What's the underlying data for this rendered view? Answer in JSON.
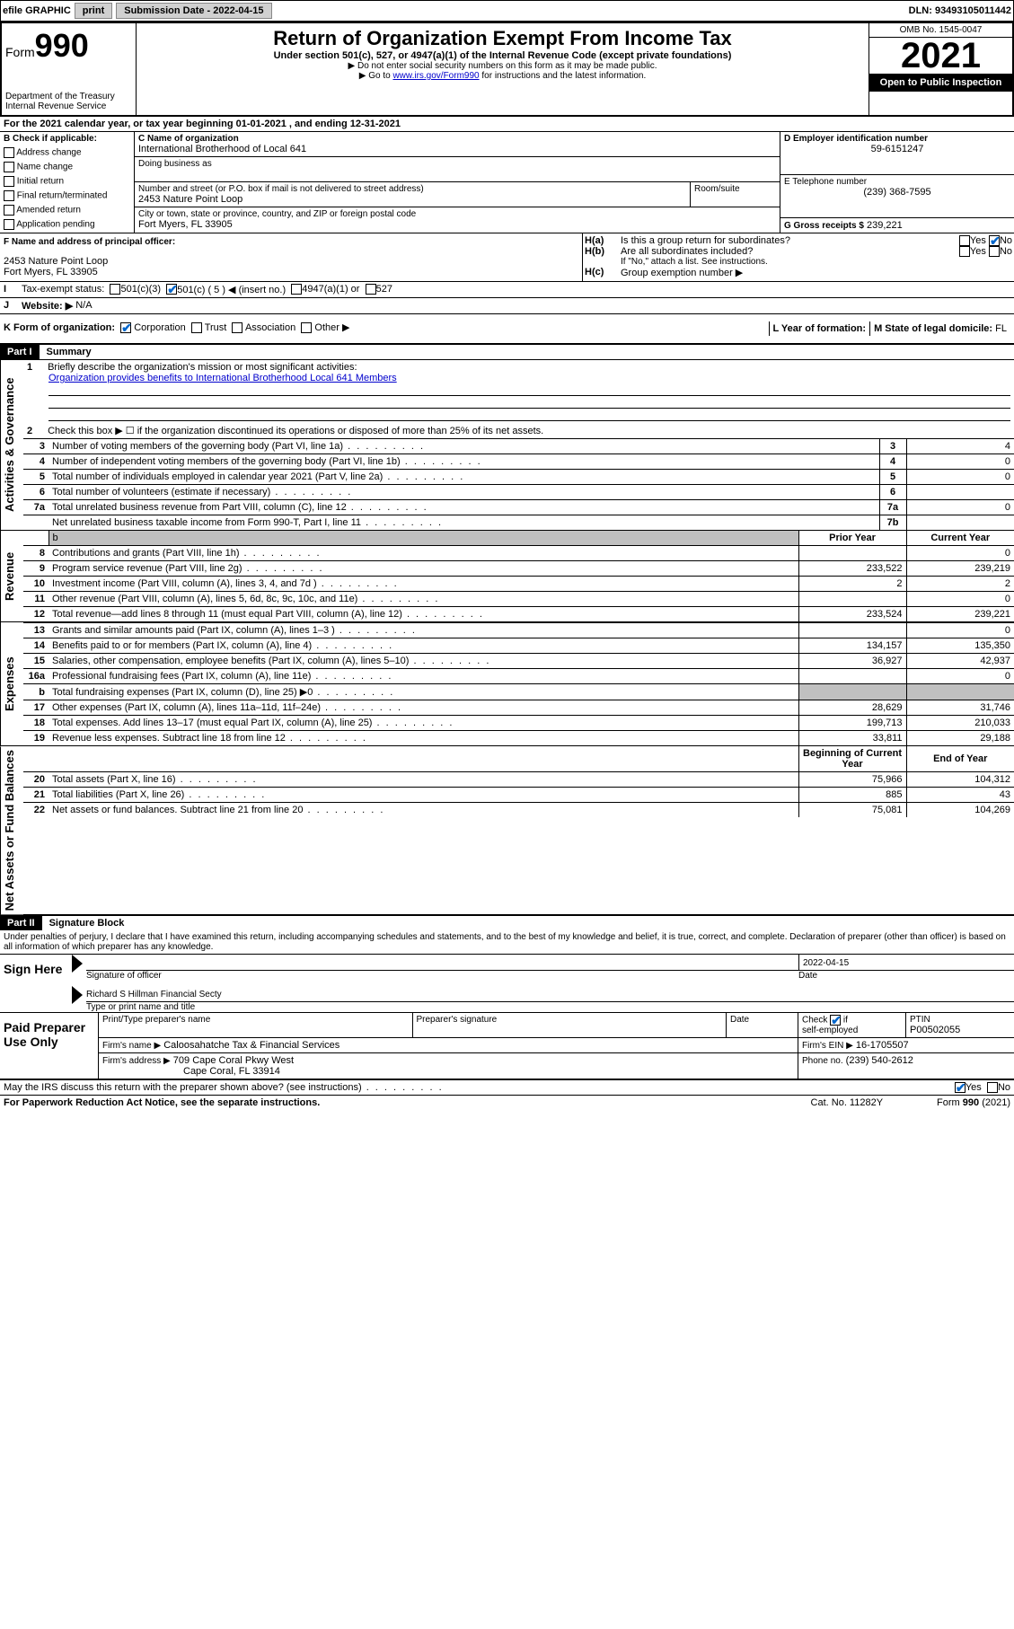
{
  "topbar": {
    "efile_label": "efile GRAPHIC",
    "print_btn": "print",
    "sub_date_label": "Submission Date - 2022-04-15",
    "dln": "DLN: 93493105011442"
  },
  "header": {
    "form_label": "Form",
    "form_number": "990",
    "dept": "Department of the Treasury\nInternal Revenue Service",
    "title": "Return of Organization Exempt From Income Tax",
    "subtitle": "Under section 501(c), 527, or 4947(a)(1) of the Internal Revenue Code (except private foundations)",
    "note1": "▶ Do not enter social security numbers on this form as it may be made public.",
    "note2_pre": "▶ Go to ",
    "note2_link": "www.irs.gov/Form990",
    "note2_post": " for instructions and the latest information.",
    "omb": "OMB No. 1545-0047",
    "year": "2021",
    "open_public": "Open to Public Inspection"
  },
  "sectionA": {
    "line": "For the 2021 calendar year, or tax year beginning 01-01-2021   , and ending 12-31-2021",
    "b_label": "B Check if applicable:",
    "b_opts": [
      "Address change",
      "Name change",
      "Initial return",
      "Final return/terminated",
      "Amended return",
      "Application pending"
    ],
    "c_label": "C Name of organization",
    "org_name": "International Brotherhood of Local 641",
    "dba_label": "Doing business as",
    "addr_label": "Number and street (or P.O. box if mail is not delivered to street address)",
    "room_label": "Room/suite",
    "addr": "2453 Nature Point Loop",
    "city_label": "City or town, state or province, country, and ZIP or foreign postal code",
    "city": "Fort Myers, FL  33905",
    "d_label": "D Employer identification number",
    "ein": "59-6151247",
    "e_label": "E Telephone number",
    "phone": "(239) 368-7595",
    "g_label": "G Gross receipts $",
    "gross": "239,221",
    "f_label": "F  Name and address of principal officer:",
    "f_addr1": "2453 Nature Point Loop",
    "f_addr2": "Fort Myers, FL  33905",
    "ha_label": "Is this a group return for subordinates?",
    "hb_label": "Are all subordinates included?",
    "hb_note": "If \"No,\" attach a list. See instructions.",
    "hc_label": "Group exemption number ▶",
    "tax_exempt_label": "Tax-exempt status:",
    "te_501c3": "501(c)(3)",
    "te_501c": "501(c) ( 5 ) ◀ (insert no.)",
    "te_4947": "4947(a)(1) or",
    "te_527": "527",
    "website_label": "Website: ▶",
    "website": "N/A",
    "k_label": "K Form of organization:",
    "k_corp": "Corporation",
    "k_trust": "Trust",
    "k_assoc": "Association",
    "k_other": "Other ▶",
    "l_label": "L Year of formation:",
    "m_label": "M State of legal domicile:",
    "m_val": "FL",
    "yes": "Yes",
    "no": "No"
  },
  "part1": {
    "header": "Part I",
    "title": "Summary",
    "side_ag": "Activities & Governance",
    "side_rev": "Revenue",
    "side_exp": "Expenses",
    "side_nab": "Net Assets or Fund Balances",
    "l1": "Briefly describe the organization's mission or most significant activities:",
    "l1_text": "Organization provides benefits to International Brotherhood Local 641 Members",
    "l2": "Check this box ▶ ☐  if the organization discontinued its operations or disposed of more than 25% of its net assets.",
    "lines_ag": [
      {
        "n": "3",
        "t": "Number of voting members of the governing body (Part VI, line 1a)",
        "k": "3",
        "v": "4"
      },
      {
        "n": "4",
        "t": "Number of independent voting members of the governing body (Part VI, line 1b)",
        "k": "4",
        "v": "0"
      },
      {
        "n": "5",
        "t": "Total number of individuals employed in calendar year 2021 (Part V, line 2a)",
        "k": "5",
        "v": "0"
      },
      {
        "n": "6",
        "t": "Total number of volunteers (estimate if necessary)",
        "k": "6",
        "v": ""
      },
      {
        "n": "7a",
        "t": "Total unrelated business revenue from Part VIII, column (C), line 12",
        "k": "7a",
        "v": "0"
      },
      {
        "n": "",
        "t": "Net unrelated business taxable income from Form 990-T, Part I, line 11",
        "k": "7b",
        "v": ""
      }
    ],
    "col_prior": "Prior Year",
    "col_current": "Current Year",
    "col_begin": "Beginning of Current Year",
    "col_end": "End of Year",
    "lines_rev": [
      {
        "n": "8",
        "t": "Contributions and grants (Part VIII, line 1h)",
        "p": "",
        "c": "0"
      },
      {
        "n": "9",
        "t": "Program service revenue (Part VIII, line 2g)",
        "p": "233,522",
        "c": "239,219"
      },
      {
        "n": "10",
        "t": "Investment income (Part VIII, column (A), lines 3, 4, and 7d )",
        "p": "2",
        "c": "2"
      },
      {
        "n": "11",
        "t": "Other revenue (Part VIII, column (A), lines 5, 6d, 8c, 9c, 10c, and 11e)",
        "p": "",
        "c": "0"
      },
      {
        "n": "12",
        "t": "Total revenue—add lines 8 through 11 (must equal Part VIII, column (A), line 12)",
        "p": "233,524",
        "c": "239,221"
      }
    ],
    "lines_exp": [
      {
        "n": "13",
        "t": "Grants and similar amounts paid (Part IX, column (A), lines 1–3 )",
        "p": "",
        "c": "0"
      },
      {
        "n": "14",
        "t": "Benefits paid to or for members (Part IX, column (A), line 4)",
        "p": "134,157",
        "c": "135,350"
      },
      {
        "n": "15",
        "t": "Salaries, other compensation, employee benefits (Part IX, column (A), lines 5–10)",
        "p": "36,927",
        "c": "42,937"
      },
      {
        "n": "16a",
        "t": "Professional fundraising fees (Part IX, column (A), line 11e)",
        "p": "",
        "c": "0"
      },
      {
        "n": "b",
        "t": "Total fundraising expenses (Part IX, column (D), line 25) ▶0",
        "p": "gray",
        "c": "gray"
      },
      {
        "n": "17",
        "t": "Other expenses (Part IX, column (A), lines 11a–11d, 11f–24e)",
        "p": "28,629",
        "c": "31,746"
      },
      {
        "n": "18",
        "t": "Total expenses. Add lines 13–17 (must equal Part IX, column (A), line 25)",
        "p": "199,713",
        "c": "210,033"
      },
      {
        "n": "19",
        "t": "Revenue less expenses. Subtract line 18 from line 12",
        "p": "33,811",
        "c": "29,188"
      }
    ],
    "lines_nab": [
      {
        "n": "20",
        "t": "Total assets (Part X, line 16)",
        "p": "75,966",
        "c": "104,312"
      },
      {
        "n": "21",
        "t": "Total liabilities (Part X, line 26)",
        "p": "885",
        "c": "43"
      },
      {
        "n": "22",
        "t": "Net assets or fund balances. Subtract line 21 from line 20",
        "p": "75,081",
        "c": "104,269"
      }
    ]
  },
  "part2": {
    "header": "Part II",
    "title": "Signature Block",
    "decl": "Under penalties of perjury, I declare that I have examined this return, including accompanying schedules and statements, and to the best of my knowledge and belief, it is true, correct, and complete. Declaration of preparer (other than officer) is based on all information of which preparer has any knowledge.",
    "sign_here": "Sign Here",
    "sig_officer": "Signature of officer",
    "date_label": "Date",
    "sig_date": "2022-04-15",
    "officer_name": "Richard S Hillman  Financial Secty",
    "type_name": "Type or print name and title",
    "paid_prep": "Paid Preparer Use Only",
    "prep_name_label": "Print/Type preparer's name",
    "prep_sig_label": "Preparer's signature",
    "check_self": "Check ☑ if self-employed",
    "ptin_label": "PTIN",
    "ptin": "P00502055",
    "firm_name_label": "Firm's name    ▶",
    "firm_name": "Caloosahatche Tax & Financial Services",
    "firm_ein_label": "Firm's EIN ▶",
    "firm_ein": "16-1705507",
    "firm_addr_label": "Firm's address ▶",
    "firm_addr1": "709 Cape Coral Pkwy West",
    "firm_addr2": "Cape Coral, FL  33914",
    "firm_phone_label": "Phone no.",
    "firm_phone": "(239) 540-2612",
    "may_irs": "May the IRS discuss this return with the preparer shown above? (see instructions)",
    "paperwork": "For Paperwork Reduction Act Notice, see the separate instructions.",
    "catno": "Cat. No. 11282Y",
    "form_foot": "Form 990 (2021)"
  }
}
